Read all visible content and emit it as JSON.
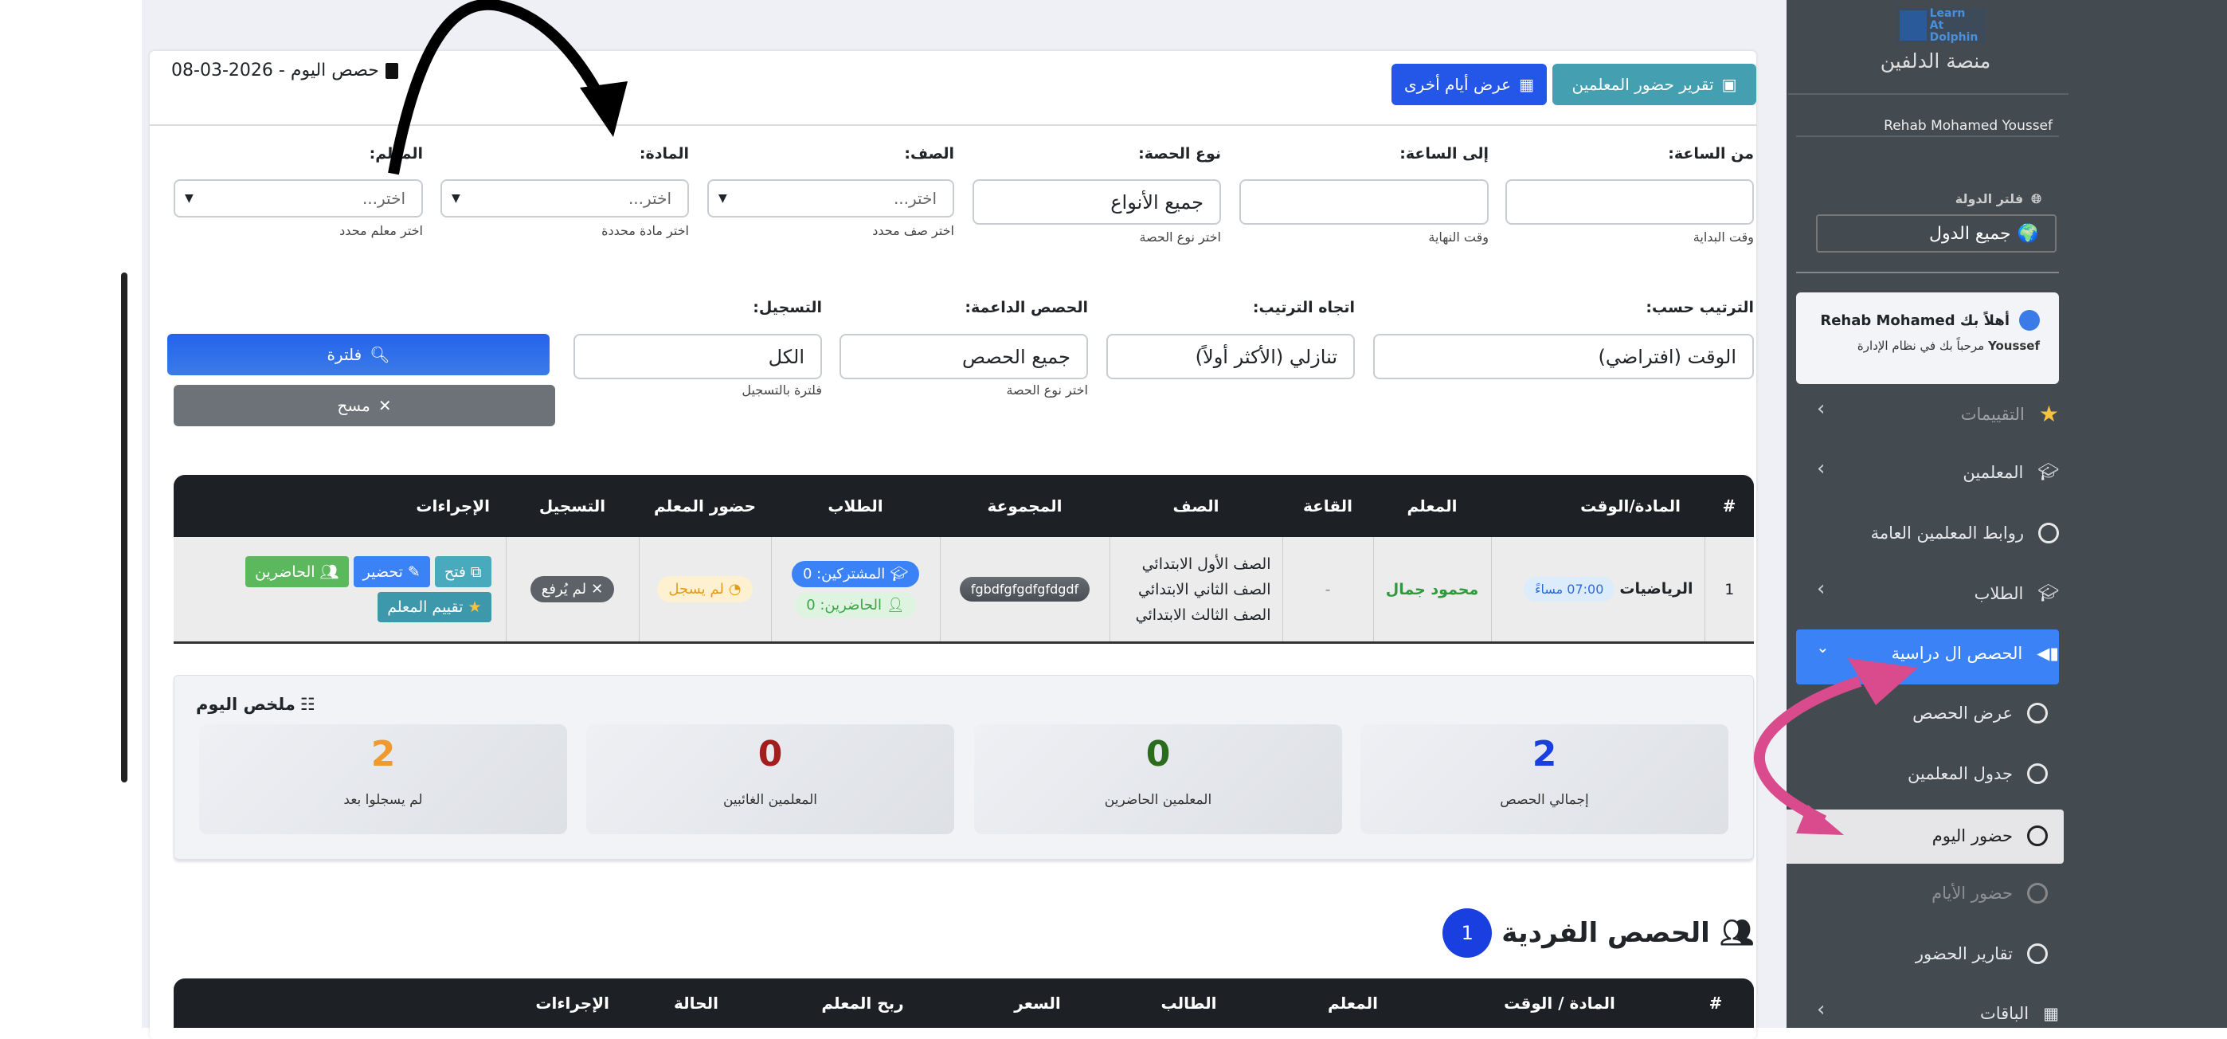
{
  "header": {
    "title": "حصص اليوم - 2026-03-08",
    "btn_teacher_report": "تقرير حضور المعلمين",
    "btn_other_days": "عرض أيام أخرى"
  },
  "filters": {
    "from_time": {
      "label": "من الساعة:",
      "value": "",
      "help": "وقت البداية"
    },
    "to_time": {
      "label": "إلى الساعة:",
      "value": "",
      "help": "وقت النهاية"
    },
    "session_type": {
      "label": "نوع الحصة:",
      "value": "جميع الأنواع",
      "help": "اختر نوع الحصة"
    },
    "grade": {
      "label": "الصف:",
      "placeholder": "اختر...",
      "help": "اختر صف محدد"
    },
    "subject": {
      "label": "المادة:",
      "placeholder": "اختر...",
      "help": "اختر مادة محددة"
    },
    "teacher": {
      "label": "المعلم:",
      "placeholder": "اختر...",
      "help": "اختر معلم محدد"
    },
    "sort_by": {
      "label": "الترتيب حسب:",
      "value": "الوقت (افتراضي)"
    },
    "sort_dir": {
      "label": "اتجاه الترتيب:",
      "value": "تنازلي (الأكثر أولاً)"
    },
    "support": {
      "label": "الحصص الداعمة:",
      "value": "جميع الحصص",
      "help": "اختر نوع الحصة"
    },
    "recording": {
      "label": "التسجيل:",
      "value": "الكل",
      "help": "فلترة بالتسجيل"
    },
    "filter_btn": "فلترة",
    "clear_btn": "مسح"
  },
  "sessions_table": {
    "columns": [
      "#",
      "المادة/الوقت",
      "المعلم",
      "القاعة",
      "الصف",
      "المجموعة",
      "الطلاب",
      "حضور المعلم",
      "التسجيل",
      "الإجراءات"
    ],
    "rows": [
      {
        "num": "1",
        "subject": "الرياضيات",
        "time": "07:00 مساءً",
        "teacher": "محمود جمال",
        "room": "-",
        "grades": [
          "الصف الأول الابتدائي",
          "الصف الثاني الابتدائي",
          "الصف الثالث الابتدائي"
        ],
        "group": "fgbdfgfgdfgfdgdf",
        "subscribed": "المشتركين: 0",
        "present": "الحاضرين: 0",
        "teacher_attendance": "لم يسجل",
        "recording": "لم يُرفع",
        "actions": {
          "open": "فتح",
          "prepare": "تحضير",
          "attendees": "الحاضرين",
          "rate": "تقييم المعلم"
        }
      }
    ]
  },
  "summary": {
    "title": "ملخص اليوم",
    "stats": [
      {
        "label": "إجمالي الحصص",
        "value": "2",
        "color": "#1a3fe0"
      },
      {
        "label": "المعلمين الحاضرين",
        "value": "0",
        "color": "#2a6b1e"
      },
      {
        "label": "المعلمين الغائبين",
        "value": "0",
        "color": "#a31d1d"
      },
      {
        "label": "لم يسجلوا بعد",
        "value": "2",
        "color": "#ef9a2f"
      }
    ]
  },
  "individual": {
    "title": "الحصص الفردية",
    "count": "1",
    "columns": [
      "#",
      "المادة / الوقت",
      "المعلم",
      "الطالب",
      "السعر",
      "ربح المعلم",
      "الحالة",
      "الإجراءات"
    ]
  },
  "sidebar": {
    "logo_text": "Learn At Dolphin",
    "brand": "منصة الدلفين",
    "user_name": "Rehab Mohamed Youssef",
    "country_filter_label": "فلتر الدولة",
    "country_value": "جميع الدول",
    "welcome_line1": "أهلاً بك Rehab Mohamed",
    "welcome_name2": "Youssef",
    "welcome_line2": "مرحباً بك في نظام الإدارة",
    "items": [
      {
        "label": "التقييمات",
        "icon": "star-icon"
      },
      {
        "label": "المعلمين",
        "icon": "teacher-icon"
      },
      {
        "label": "روابط المعلمين العامة",
        "icon": "circle-icon"
      },
      {
        "label": "الطلاب",
        "icon": "student-icon"
      },
      {
        "label": "الحصص ال دراسية",
        "icon": "video-icon",
        "active": true
      },
      {
        "label": "عرض الحصص",
        "icon": "circle-icon"
      },
      {
        "label": "جدول المعلمين",
        "icon": "circle-icon"
      },
      {
        "label": "حضور اليوم",
        "icon": "circle-icon",
        "selected": true
      },
      {
        "label": "حضور الأيام",
        "icon": "circle-icon"
      },
      {
        "label": "تقارير الحضور",
        "icon": "circle-icon"
      },
      {
        "label": "الباقات",
        "icon": "box-icon"
      }
    ]
  },
  "colors": {
    "accent": "#3b82f6",
    "teal": "#44a0b0",
    "primary": "#2563eb",
    "sidebar": "#434a50",
    "annotation_pink": "#d94b8c"
  }
}
